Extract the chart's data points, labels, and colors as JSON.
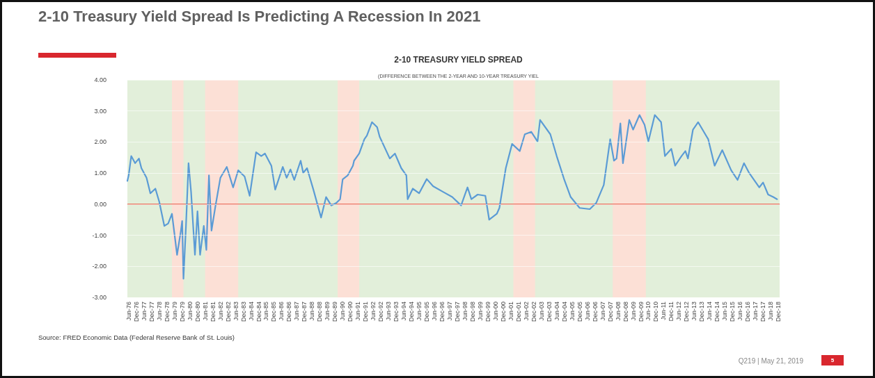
{
  "chart_data": {
    "type": "line",
    "title": "2-10 Treasury Yield Spread Is Predicting A Recession In 2021",
    "subtitle": "2-10 TREASURY YIELD SPREAD",
    "annotations": [
      "(DIFFERENCE BETWEEN THE 2-YEAR AND 10-YEAR TREASURY YIEL",
      "Source: FRED Economic Data (Federal Reserve Bank of St. Louis)",
      "Q219 | May 21, 2019",
      "5"
    ],
    "x": [
      "1976-05",
      "1976-06",
      "1976-08",
      "1976-11",
      "1977-02",
      "1977-04",
      "1977-08",
      "1977-11",
      "1978-03",
      "1978-06",
      "1978-10",
      "1979-01",
      "1979-04",
      "1979-08",
      "1979-11",
      "1979-12",
      "1980-01",
      "1980-03",
      "1980-05",
      "1980-07",
      "1980-10",
      "1980-12",
      "1981-02",
      "1981-05",
      "1981-07",
      "1981-09",
      "1981-11",
      "1982-02",
      "1982-06",
      "1982-11",
      "1983-04",
      "1983-08",
      "1984-01",
      "1984-05",
      "1984-10",
      "1985-02",
      "1985-05",
      "1985-10",
      "1986-01",
      "1986-07",
      "1986-10",
      "1987-01",
      "1987-04",
      "1987-09",
      "1987-11",
      "1988-02",
      "1988-07",
      "1989-01",
      "1989-05",
      "1989-09",
      "1990-01",
      "1990-04",
      "1990-06",
      "1990-10",
      "1991-02",
      "1991-03",
      "1991-07",
      "1991-11",
      "1992-01",
      "1992-05",
      "1992-09",
      "1992-11",
      "1993-07",
      "1993-11",
      "1994-04",
      "1994-08",
      "1994-09",
      "1995-01",
      "1995-06",
      "1995-12",
      "1996-05",
      "1997-01",
      "1997-08",
      "1998-03",
      "1998-08",
      "1998-11",
      "1999-04",
      "1999-10",
      "2000-01",
      "2000-07",
      "2000-09",
      "2001-02",
      "2001-07",
      "2002-01",
      "2002-05",
      "2002-10",
      "2003-03",
      "2003-05",
      "2004-01",
      "2004-06",
      "2004-12",
      "2005-05",
      "2005-12",
      "2006-08",
      "2007-01",
      "2007-07",
      "2007-12",
      "2008-03",
      "2008-05",
      "2008-08",
      "2008-10",
      "2009-03",
      "2009-06",
      "2009-11",
      "2010-03",
      "2010-06",
      "2010-11",
      "2011-04",
      "2011-07",
      "2011-12",
      "2012-03",
      "2012-08",
      "2012-11",
      "2013-01",
      "2013-05",
      "2013-09",
      "2014-05",
      "2014-10",
      "2015-04",
      "2015-11",
      "2016-04",
      "2016-09",
      "2017-01",
      "2017-09",
      "2017-12",
      "2018-04",
      "2018-08",
      "2018-11"
    ],
    "series": [
      {
        "color": "#5b9bd5",
        "values": [
          0.75,
          0.93,
          1.55,
          1.32,
          1.47,
          1.16,
          0.85,
          0.35,
          0.5,
          0.08,
          -0.7,
          -0.62,
          -0.31,
          -1.63,
          -0.85,
          -0.54,
          -2.4,
          -0.7,
          1.32,
          0.39,
          -1.63,
          -0.23,
          -1.63,
          -0.7,
          -1.47,
          0.93,
          -0.85,
          -0.08,
          0.85,
          1.2,
          0.54,
          1.09,
          0.89,
          0.27,
          1.67,
          1.55,
          1.63,
          1.24,
          0.47,
          1.2,
          0.85,
          1.12,
          0.78,
          1.4,
          1.01,
          1.16,
          0.47,
          -0.43,
          0.23,
          -0.04,
          0.04,
          0.16,
          0.8,
          0.93,
          1.24,
          1.4,
          1.63,
          2.09,
          2.21,
          2.64,
          2.48,
          2.17,
          1.47,
          1.63,
          1.16,
          0.93,
          0.16,
          0.5,
          0.35,
          0.81,
          0.58,
          0.39,
          0.23,
          -0.04,
          0.54,
          0.16,
          0.31,
          0.27,
          -0.5,
          -0.31,
          -0.12,
          1.16,
          1.94,
          1.71,
          2.25,
          2.33,
          2.02,
          2.71,
          2.25,
          1.55,
          0.78,
          0.23,
          -0.12,
          -0.16,
          0.04,
          0.62,
          2.09,
          1.4,
          1.47,
          2.6,
          1.32,
          2.71,
          2.4,
          2.87,
          2.56,
          2.02,
          2.87,
          2.64,
          1.55,
          1.78,
          1.24,
          1.55,
          1.71,
          1.47,
          2.4,
          2.64,
          2.09,
          1.24,
          1.74,
          1.09,
          0.78,
          1.32,
          1.01,
          0.54,
          0.7,
          0.31,
          0.23,
          0.16
        ]
      }
    ],
    "xlim": [
      "1976-05",
      "2019-01"
    ],
    "xticks": [
      {
        "value": "1976-06",
        "label": "Jun-76"
      },
      {
        "value": "1976-12",
        "label": "Dec-76"
      },
      {
        "value": "1977-06",
        "label": "Jun-77"
      },
      {
        "value": "1977-12",
        "label": "Dec-77"
      },
      {
        "value": "1978-06",
        "label": "Jun-78"
      },
      {
        "value": "1978-12",
        "label": "Dec-78"
      },
      {
        "value": "1979-06",
        "label": "Jun-79"
      },
      {
        "value": "1979-12",
        "label": "Dec-79"
      },
      {
        "value": "1980-06",
        "label": "Jun-80"
      },
      {
        "value": "1980-12",
        "label": "Dec-80"
      },
      {
        "value": "1981-06",
        "label": "Jun-81"
      },
      {
        "value": "1981-12",
        "label": "Dec-81"
      },
      {
        "value": "1982-06",
        "label": "Jun-82"
      },
      {
        "value": "1982-12",
        "label": "Dec-82"
      },
      {
        "value": "1983-06",
        "label": "Jun-83"
      },
      {
        "value": "1983-12",
        "label": "Dec-83"
      },
      {
        "value": "1984-06",
        "label": "Jun-84"
      },
      {
        "value": "1984-12",
        "label": "Dec-84"
      },
      {
        "value": "1985-06",
        "label": "Jun-85"
      },
      {
        "value": "1985-12",
        "label": "Dec-85"
      },
      {
        "value": "1986-06",
        "label": "Jun-86"
      },
      {
        "value": "1986-12",
        "label": "Dec-86"
      },
      {
        "value": "1987-06",
        "label": "Jun-87"
      },
      {
        "value": "1987-12",
        "label": "Dec-87"
      },
      {
        "value": "1988-06",
        "label": "Jun-88"
      },
      {
        "value": "1988-12",
        "label": "Dec-88"
      },
      {
        "value": "1989-06",
        "label": "Jun-89"
      },
      {
        "value": "1989-12",
        "label": "Dec-89"
      },
      {
        "value": "1990-06",
        "label": "Jun-90"
      },
      {
        "value": "1990-12",
        "label": "Dec-90"
      },
      {
        "value": "1991-06",
        "label": "Jun-91"
      },
      {
        "value": "1991-12",
        "label": "Dec-91"
      },
      {
        "value": "1992-06",
        "label": "Jun-92"
      },
      {
        "value": "1992-12",
        "label": "Dec-92"
      },
      {
        "value": "1993-06",
        "label": "Jun-93"
      },
      {
        "value": "1993-12",
        "label": "Dec-93"
      },
      {
        "value": "1994-06",
        "label": "Jun-94"
      },
      {
        "value": "1994-12",
        "label": "Dec-94"
      },
      {
        "value": "1995-06",
        "label": "Jun-95"
      },
      {
        "value": "1995-12",
        "label": "Dec-95"
      },
      {
        "value": "1996-06",
        "label": "Jun-96"
      },
      {
        "value": "1996-12",
        "label": "Dec-96"
      },
      {
        "value": "1997-06",
        "label": "Jun-97"
      },
      {
        "value": "1997-12",
        "label": "Dec-97"
      },
      {
        "value": "1998-06",
        "label": "Jun-98"
      },
      {
        "value": "1998-12",
        "label": "Dec-98"
      },
      {
        "value": "1999-06",
        "label": "Jun-99"
      },
      {
        "value": "1999-12",
        "label": "Dec-99"
      },
      {
        "value": "2000-06",
        "label": "Jun-00"
      },
      {
        "value": "2000-12",
        "label": "Dec-00"
      },
      {
        "value": "2001-06",
        "label": "Jun-01"
      },
      {
        "value": "2001-12",
        "label": "Dec-01"
      },
      {
        "value": "2002-06",
        "label": "Jun-02"
      },
      {
        "value": "2002-12",
        "label": "Dec-02"
      },
      {
        "value": "2003-06",
        "label": "Jun-03"
      },
      {
        "value": "2003-12",
        "label": "Dec-03"
      },
      {
        "value": "2004-06",
        "label": "Jun-04"
      },
      {
        "value": "2004-12",
        "label": "Dec-04"
      },
      {
        "value": "2005-06",
        "label": "Jun-05"
      },
      {
        "value": "2005-12",
        "label": "Dec-05"
      },
      {
        "value": "2006-06",
        "label": "Jun-06"
      },
      {
        "value": "2006-12",
        "label": "Dec-06"
      },
      {
        "value": "2007-06",
        "label": "Jun-07"
      },
      {
        "value": "2007-12",
        "label": "Dec-07"
      },
      {
        "value": "2008-06",
        "label": "Jun-08"
      },
      {
        "value": "2008-12",
        "label": "Dec-08"
      },
      {
        "value": "2009-06",
        "label": "Jun-09"
      },
      {
        "value": "2009-12",
        "label": "Dec-09"
      },
      {
        "value": "2010-06",
        "label": "Jun-10"
      },
      {
        "value": "2010-12",
        "label": "Dec-10"
      },
      {
        "value": "2011-06",
        "label": "Jun-11"
      },
      {
        "value": "2011-12",
        "label": "Dec-11"
      },
      {
        "value": "2012-06",
        "label": "Jun-12"
      },
      {
        "value": "2012-12",
        "label": "Dec-12"
      },
      {
        "value": "2013-06",
        "label": "Jun-13"
      },
      {
        "value": "2013-12",
        "label": "Dec-13"
      },
      {
        "value": "2014-06",
        "label": "Jun-14"
      },
      {
        "value": "2014-12",
        "label": "Dec-14"
      },
      {
        "value": "2015-06",
        "label": "Jun-15"
      },
      {
        "value": "2015-12",
        "label": "Dec-15"
      },
      {
        "value": "2016-06",
        "label": "Jun-16"
      },
      {
        "value": "2016-12",
        "label": "Dec-16"
      },
      {
        "value": "2017-06",
        "label": "Jun-17"
      },
      {
        "value": "2017-12",
        "label": "Dec-17"
      },
      {
        "value": "2018-06",
        "label": "Jun-18"
      },
      {
        "value": "2018-12",
        "label": "Dec-18"
      }
    ],
    "ylim": [
      -3,
      4
    ],
    "yticks": [
      {
        "value": -3,
        "label": "-3.00"
      },
      {
        "value": -2,
        "label": "-2.00"
      },
      {
        "value": -1,
        "label": "-1.00"
      },
      {
        "value": 0,
        "label": "0.00"
      },
      {
        "value": 1,
        "label": "1.00"
      },
      {
        "value": 2,
        "label": "2.00"
      },
      {
        "value": 3,
        "label": "3.00"
      },
      {
        "value": 4,
        "label": "4.00"
      }
    ],
    "grid": "y",
    "marker": "none",
    "line_style": "solid",
    "ref_lines": [
      {
        "axis": "y",
        "value": 0,
        "color": "#e8503a",
        "line_style": "solid"
      }
    ],
    "bands": [
      {
        "axis": "x",
        "from": "1976-05",
        "to": "2019-01",
        "color": "#e2efda"
      },
      {
        "axis": "x",
        "from": "1979-04",
        "to": "1980-01",
        "color": "#fce0d6"
      },
      {
        "axis": "x",
        "from": "1981-06",
        "to": "1983-08",
        "color": "#fce0d6"
      },
      {
        "axis": "x",
        "from": "1990-02",
        "to": "1991-07",
        "color": "#fce0d6"
      },
      {
        "axis": "x",
        "from": "2001-08",
        "to": "2003-01",
        "color": "#fce0d6"
      },
      {
        "axis": "x",
        "from": "2008-02",
        "to": "2010-04",
        "color": "#fce0d6"
      }
    ]
  }
}
